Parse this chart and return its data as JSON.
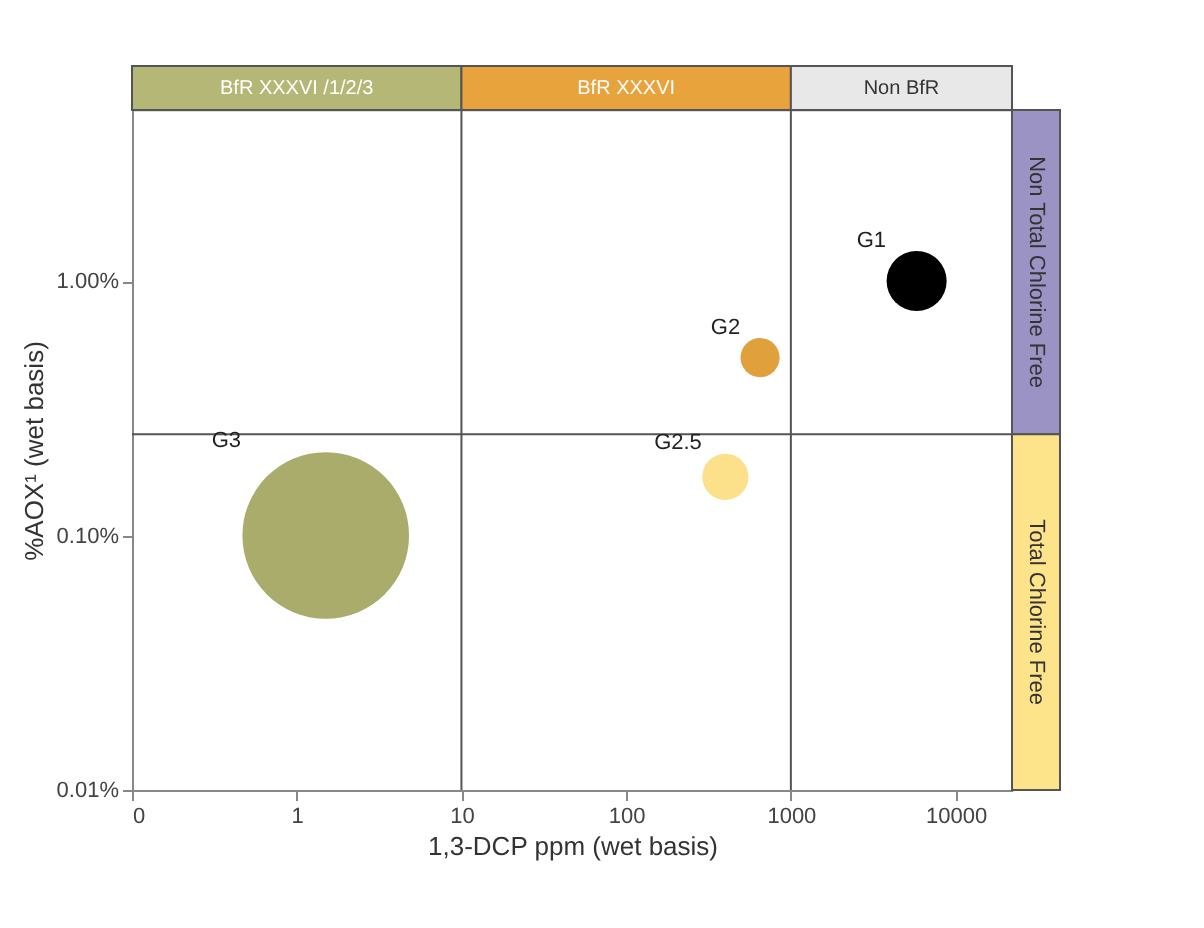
{
  "chart_data": {
    "type": "bubble",
    "xlabel": "1,3-DCP ppm (wet basis)",
    "ylabel": "%AOX¹ (wet basis)",
    "log": "xy",
    "grid": false,
    "xlim": [
      0.1,
      22000
    ],
    "xticks": [
      {
        "value": 0.1,
        "label": "0"
      },
      1,
      10,
      100,
      1000,
      10000
    ],
    "ylim": [
      0.01,
      4.7
    ],
    "yticks": [
      {
        "value": 0.01,
        "label": "0.01%"
      },
      {
        "value": 0.1,
        "label": "0.10%"
      },
      {
        "value": 1,
        "label": "1.00%"
      }
    ],
    "series": [
      {
        "name": "G1",
        "color": "#000000",
        "x": [
          5800
        ],
        "values": [
          1.0
        ],
        "sizes": [
          0.13
        ]
      },
      {
        "name": "G2",
        "color": "#e0a03c",
        "x": [
          650
        ],
        "values": [
          0.5
        ],
        "sizes": [
          0.055
        ]
      },
      {
        "name": "G2.5",
        "color": "#fde08a",
        "x": [
          400
        ],
        "values": [
          0.17
        ],
        "sizes": [
          0.077
        ]
      },
      {
        "name": "G3",
        "color": "#a9ac6a",
        "x": [
          1.5
        ],
        "values": [
          0.1
        ],
        "sizes": [
          1
        ]
      }
    ],
    "ref_lines": [
      {
        "axis": "x",
        "value": 10
      },
      {
        "axis": "x",
        "value": 1000
      },
      {
        "axis": "y",
        "value": 0.25
      }
    ],
    "annotations": [
      "BfR XXXVI /1/2/3",
      "BfR XXXVI",
      "Non BfR",
      "Non Total Chlorine Free",
      "Total Chlorine Free"
    ]
  }
}
